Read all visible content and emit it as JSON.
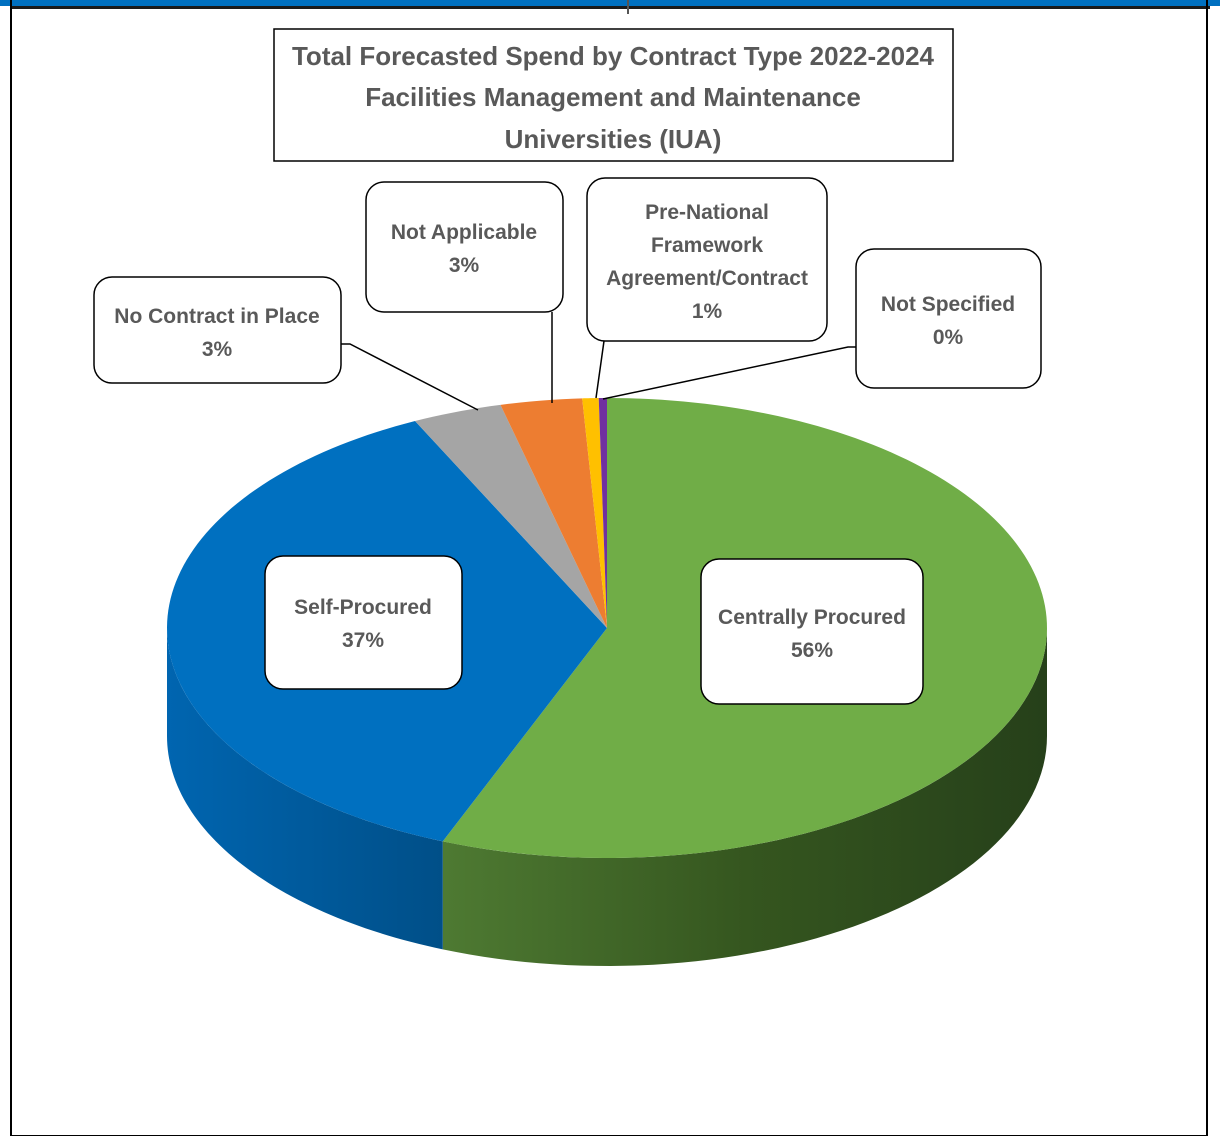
{
  "chart_data": {
    "type": "pie",
    "title_lines": [
      "Total Forecasted Spend by Contract Type 2022-2024",
      "Facilities Management and Maintenance",
      "Universities (IUA)"
    ],
    "slices": [
      {
        "key": "centrally",
        "name": "Centrally Procured",
        "pct_label": "56%",
        "value": 56.2,
        "color": "#70ad47",
        "side_color": "#3d6128",
        "label_lines": [
          "Centrally Procured",
          "56%"
        ]
      },
      {
        "key": "self",
        "name": "Self-Procured",
        "pct_label": "37%",
        "value": 36.8,
        "color": "#0070c0",
        "side_color": "#00548f",
        "label_lines": [
          "Self-Procured",
          "37%"
        ]
      },
      {
        "key": "nocontract",
        "name": "No Contract in Place",
        "pct_label": "3%",
        "value": 3.3,
        "color": "#a5a5a5",
        "side_color": "#7a7a7a",
        "label_lines": [
          "No Contract in Place",
          "3%"
        ]
      },
      {
        "key": "notapplicable",
        "name": "Not Applicable",
        "pct_label": "3%",
        "value": 3.0,
        "color": "#ed7d31",
        "side_color": "#b05a20",
        "label_lines": [
          "Not Applicable",
          "3%"
        ]
      },
      {
        "key": "prenational",
        "name": "Pre-National Framework Agreement/Contract",
        "pct_label": "1%",
        "value": 0.6,
        "color": "#ffc000",
        "side_color": "#c79600",
        "label_lines": [
          "Pre-National",
          "Framework",
          "Agreement/Contract",
          "1%"
        ]
      },
      {
        "key": "notspecified",
        "name": "Not Specified",
        "pct_label": "0%",
        "value": 0.3,
        "color": "#7030a0",
        "side_color": "#4f2170",
        "label_lines": [
          "Not Specified",
          "0%"
        ]
      }
    ]
  }
}
